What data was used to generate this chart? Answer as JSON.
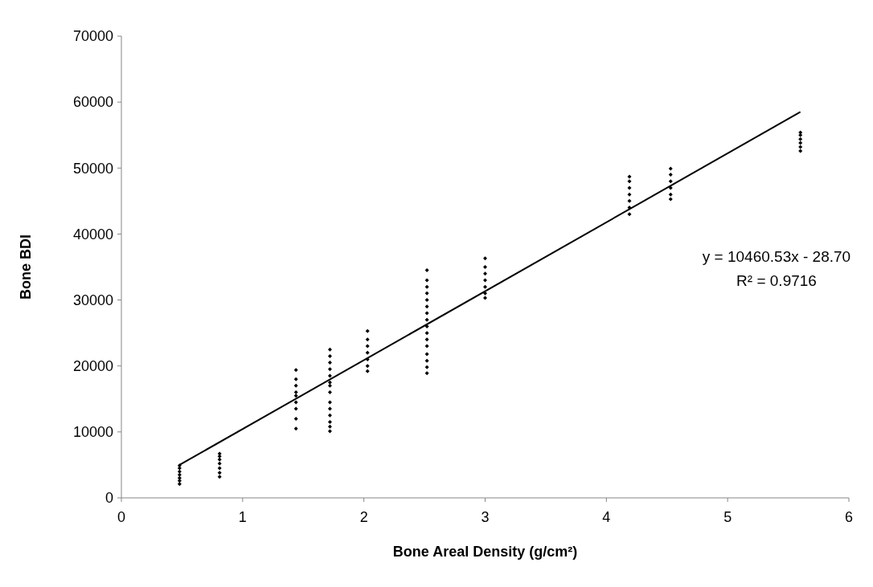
{
  "chart_data": {
    "type": "scatter",
    "xlabel": "Bone Areal Density (g/cm²)",
    "ylabel": "Bone BDI",
    "xlim": [
      0,
      6
    ],
    "xticks": [
      0,
      1,
      2,
      3,
      4,
      5,
      6
    ],
    "ylim": [
      0,
      70000
    ],
    "yticks": [
      0,
      10000,
      20000,
      30000,
      40000,
      50000,
      60000,
      70000
    ],
    "grid": false,
    "annotations": [
      "y = 10460.53x - 28.70",
      "R² = 0.9716"
    ],
    "series": [
      {
        "color": "#000000",
        "marker": "diamond",
        "x": [
          0.48,
          0.48,
          0.48,
          0.48,
          0.48,
          0.48,
          0.48,
          0.81,
          0.81,
          0.81,
          0.81,
          0.81,
          0.81,
          0.81,
          1.44,
          1.44,
          1.44,
          1.44,
          1.44,
          1.44,
          1.44,
          1.44,
          1.44,
          1.72,
          1.72,
          1.72,
          1.72,
          1.72,
          1.72,
          1.72,
          1.72,
          1.72,
          1.72,
          1.72,
          1.72,
          1.72,
          1.72,
          2.03,
          2.03,
          2.03,
          2.03,
          2.03,
          2.03,
          2.03,
          2.52,
          2.52,
          2.52,
          2.52,
          2.52,
          2.52,
          2.52,
          2.52,
          2.52,
          2.52,
          2.52,
          2.52,
          2.52,
          2.52,
          2.52,
          2.52,
          3.0,
          3.0,
          3.0,
          3.0,
          3.0,
          3.0,
          3.0,
          4.19,
          4.19,
          4.19,
          4.19,
          4.19,
          4.19,
          4.19,
          4.53,
          4.53,
          4.53,
          4.53,
          4.53,
          4.53,
          5.6,
          5.6,
          5.6,
          5.6,
          5.6,
          5.6
        ],
        "values": [
          2100,
          2600,
          3000,
          3500,
          4000,
          4500,
          4900,
          3200,
          3800,
          4500,
          5200,
          5800,
          6300,
          6700,
          10500,
          12000,
          13500,
          14500,
          15500,
          16000,
          17000,
          18000,
          19400,
          10100,
          10800,
          11500,
          12500,
          13500,
          14500,
          16000,
          17000,
          17500,
          18500,
          19500,
          20500,
          21500,
          22500,
          19200,
          20000,
          21000,
          22000,
          23000,
          24000,
          25300,
          18900,
          19800,
          20800,
          21800,
          23000,
          24000,
          25000,
          26000,
          27000,
          28000,
          29000,
          30000,
          31000,
          32000,
          33000,
          34500,
          30300,
          31000,
          32000,
          33000,
          34000,
          35000,
          36300,
          43000,
          44000,
          45000,
          46000,
          47000,
          48000,
          48700,
          45300,
          46000,
          47000,
          48000,
          49000,
          49900,
          52600,
          53200,
          53800,
          54400,
          55000,
          55400
        ]
      },
      {
        "type": "line",
        "color": "#000000",
        "marker": "none",
        "line_style": "solid",
        "x": [
          0.48,
          5.6
        ],
        "values": [
          5000,
          58500
        ]
      }
    ]
  }
}
